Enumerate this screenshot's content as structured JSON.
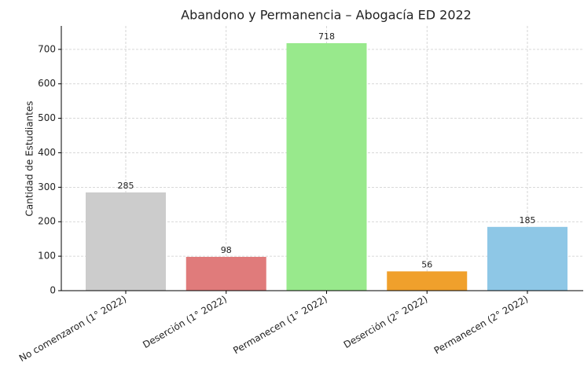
{
  "chart_data": {
    "type": "bar",
    "title": "Abandono y Permanencia – Abogacía ED 2022",
    "y_label": "Cantidad de Estudiantes",
    "categories": [
      "No comenzaron (1° 2022)",
      "Deserción (1° 2022)",
      "Permanecen (1° 2022)",
      "Deserción (2° 2022)",
      "Permanecen (2° 2022)"
    ],
    "values": [
      285,
      98,
      718,
      56,
      185
    ],
    "colors": [
      "#cccccc",
      "#e07b7b",
      "#98e98c",
      "#f0a02c",
      "#8ec7e6"
    ],
    "ylim": [
      0,
      768
    ],
    "yticks": [
      0,
      100,
      200,
      300,
      400,
      500,
      600,
      700
    ],
    "grid": true
  }
}
